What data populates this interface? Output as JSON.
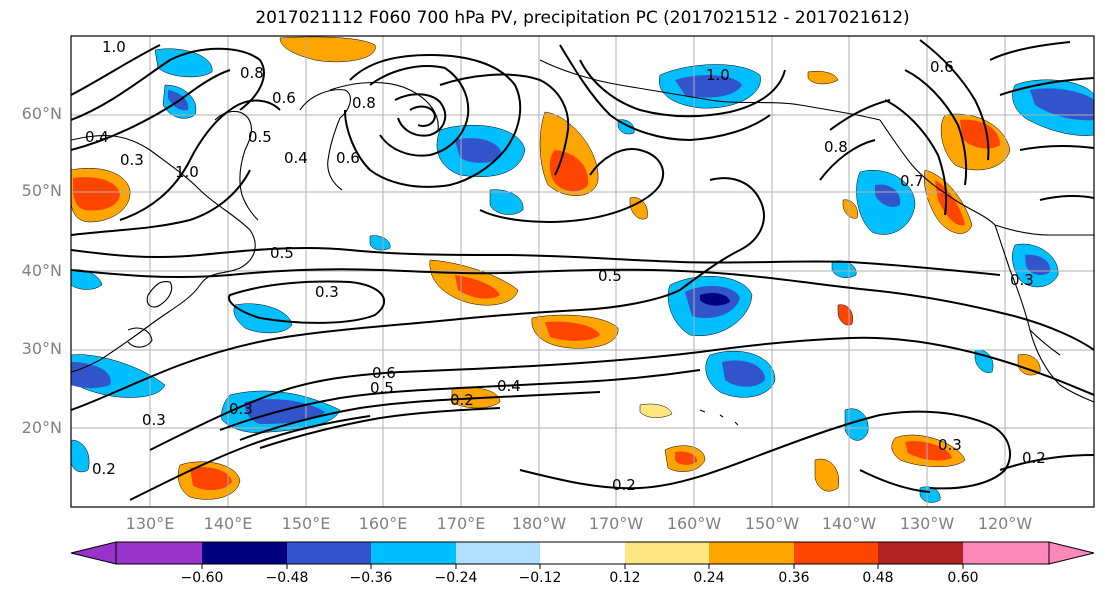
{
  "title": "2017021112 F060 700 hPa PV, precipitation PC (2017021512 - 2017021612)",
  "lat_labels": [
    "60°N",
    "50°N",
    "40°N",
    "30°N",
    "20°N"
  ],
  "lon_labels": [
    "130°E",
    "140°E",
    "150°E",
    "160°E",
    "170°E",
    "180°W",
    "170°W",
    "160°W",
    "150°W",
    "140°W",
    "130°W",
    "120°W"
  ],
  "colorbar": {
    "ticks": [
      "−0.60",
      "−0.48",
      "−0.36",
      "−0.24",
      "−0.12",
      "0.12",
      "0.24",
      "0.36",
      "0.48",
      "0.60"
    ],
    "colors": [
      "#9933cc",
      "#000080",
      "#3355cc",
      "#00bfff",
      "#b0e0ff",
      "#ffffff",
      "#ffe680",
      "#ffa500",
      "#ff4500",
      "#b22222",
      "#ff88bb"
    ]
  },
  "contour_labels": [
    "1.0",
    "0.8",
    "0.6",
    "0.5",
    "0.4",
    "0.3",
    "0.2",
    "0.5",
    "0.3",
    "0.4",
    "0.2",
    "0.6",
    "0.5",
    "0.3",
    "0.8",
    "1.0",
    "0.6",
    "0.4",
    "0.3",
    "0.5",
    "0.2",
    "0.3",
    "0.2",
    "0.3",
    "0.6",
    "0.7",
    "1.0",
    "0.8"
  ]
}
